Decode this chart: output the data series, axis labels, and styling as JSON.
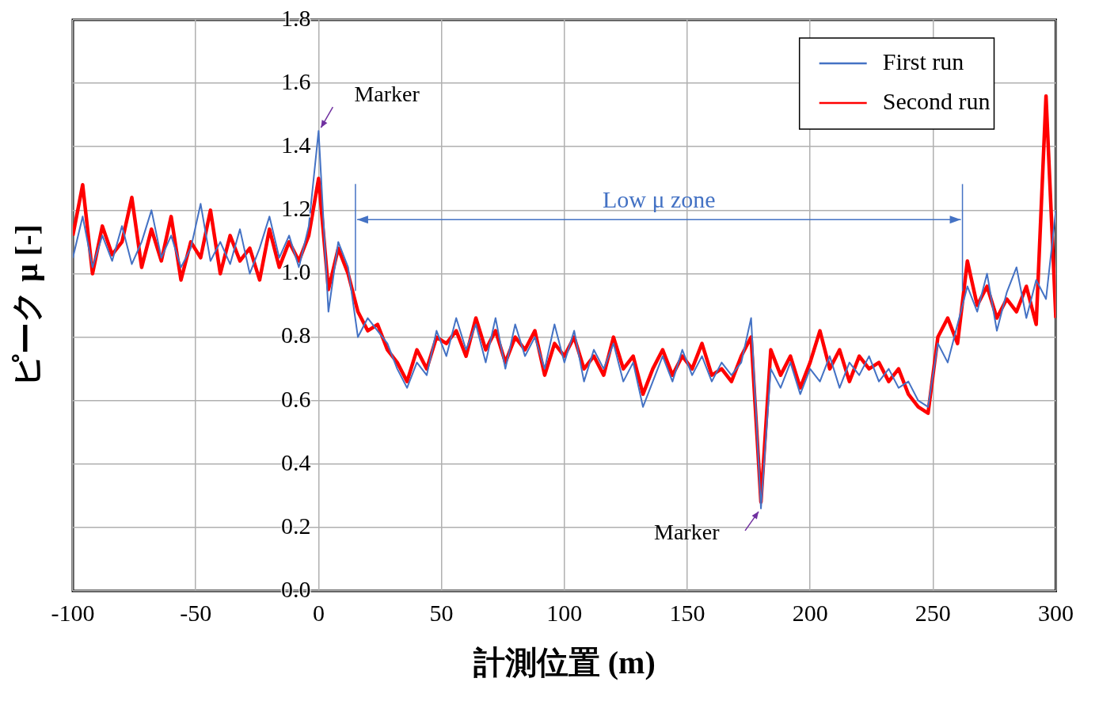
{
  "chart_data": {
    "type": "line",
    "xlabel": "計測位置 (m)",
    "ylabel": "ピーク μ [-]",
    "x": [
      -100,
      -96,
      -92,
      -88,
      -84,
      -80,
      -76,
      -72,
      -68,
      -64,
      -60,
      -56,
      -52,
      -48,
      -44,
      -40,
      -36,
      -32,
      -28,
      -24,
      -20,
      -16,
      -12,
      -8,
      -4,
      0,
      4,
      8,
      12,
      16,
      20,
      24,
      28,
      32,
      36,
      40,
      44,
      48,
      52,
      56,
      60,
      64,
      68,
      72,
      76,
      80,
      84,
      88,
      92,
      96,
      100,
      104,
      108,
      112,
      116,
      120,
      124,
      128,
      132,
      136,
      140,
      144,
      148,
      152,
      156,
      160,
      164,
      168,
      172,
      176,
      180,
      184,
      188,
      192,
      196,
      200,
      204,
      208,
      212,
      216,
      220,
      224,
      228,
      232,
      236,
      240,
      244,
      248,
      252,
      256,
      260,
      264,
      268,
      272,
      276,
      280,
      284,
      288,
      292,
      296,
      300
    ],
    "series": [
      {
        "name": "First run",
        "color": "#4472c4",
        "values": [
          1.05,
          1.18,
          1.02,
          1.12,
          1.04,
          1.15,
          1.03,
          1.1,
          1.2,
          1.05,
          1.12,
          1.02,
          1.08,
          1.22,
          1.04,
          1.1,
          1.03,
          1.14,
          1.0,
          1.08,
          1.18,
          1.05,
          1.12,
          1.02,
          1.15,
          1.45,
          0.88,
          1.1,
          1.02,
          0.8,
          0.86,
          0.82,
          0.78,
          0.7,
          0.64,
          0.72,
          0.68,
          0.82,
          0.74,
          0.86,
          0.76,
          0.84,
          0.72,
          0.86,
          0.7,
          0.84,
          0.74,
          0.8,
          0.7,
          0.84,
          0.72,
          0.82,
          0.66,
          0.76,
          0.7,
          0.78,
          0.66,
          0.72,
          0.58,
          0.66,
          0.74,
          0.66,
          0.76,
          0.68,
          0.74,
          0.66,
          0.72,
          0.68,
          0.72,
          0.86,
          0.26,
          0.7,
          0.64,
          0.72,
          0.62,
          0.7,
          0.66,
          0.74,
          0.64,
          0.72,
          0.68,
          0.74,
          0.66,
          0.7,
          0.64,
          0.66,
          0.6,
          0.58,
          0.78,
          0.72,
          0.84,
          0.96,
          0.88,
          1.0,
          0.82,
          0.94,
          1.02,
          0.86,
          0.98,
          0.92,
          1.2
        ]
      },
      {
        "name": "Second run",
        "color": "#ff0000",
        "values": [
          1.12,
          1.28,
          1.0,
          1.15,
          1.06,
          1.1,
          1.24,
          1.02,
          1.14,
          1.04,
          1.18,
          0.98,
          1.1,
          1.05,
          1.2,
          1.0,
          1.12,
          1.04,
          1.08,
          0.98,
          1.14,
          1.02,
          1.1,
          1.04,
          1.12,
          1.3,
          0.95,
          1.08,
          1.0,
          0.88,
          0.82,
          0.84,
          0.76,
          0.72,
          0.66,
          0.76,
          0.7,
          0.8,
          0.78,
          0.82,
          0.74,
          0.86,
          0.76,
          0.82,
          0.72,
          0.8,
          0.76,
          0.82,
          0.68,
          0.78,
          0.74,
          0.8,
          0.7,
          0.74,
          0.68,
          0.8,
          0.7,
          0.74,
          0.62,
          0.7,
          0.76,
          0.68,
          0.74,
          0.7,
          0.78,
          0.68,
          0.7,
          0.66,
          0.74,
          0.8,
          0.28,
          0.76,
          0.68,
          0.74,
          0.64,
          0.72,
          0.82,
          0.7,
          0.76,
          0.66,
          0.74,
          0.7,
          0.72,
          0.66,
          0.7,
          0.62,
          0.58,
          0.56,
          0.8,
          0.86,
          0.78,
          1.04,
          0.9,
          0.96,
          0.86,
          0.92,
          0.88,
          0.96,
          0.84,
          1.56,
          0.86
        ]
      }
    ],
    "xlim": [
      -100,
      300
    ],
    "xticks": [
      -100,
      -50,
      0,
      50,
      100,
      150,
      200,
      250,
      300
    ],
    "ylim": [
      0,
      1.8
    ],
    "yticks": [
      {
        "value": 0,
        "label": "0.0"
      },
      0.2,
      0.4,
      0.6,
      0.8,
      {
        "value": 1,
        "label": "1.0"
      },
      1.2,
      1.4,
      1.6,
      1.8
    ],
    "grid": true,
    "legend": "top right",
    "marker": "none",
    "line_style": "solid",
    "ref_lines": [
      {
        "axis": "x",
        "value": 15,
        "color": "#4472c4"
      },
      {
        "axis": "x",
        "value": 262,
        "color": "#4472c4"
      }
    ],
    "annotations": [
      {
        "text": "Marker",
        "x": 0,
        "y": 1.45
      },
      {
        "text": "Marker",
        "x": 180,
        "y": 0.26
      },
      "Low μ zone"
    ]
  }
}
